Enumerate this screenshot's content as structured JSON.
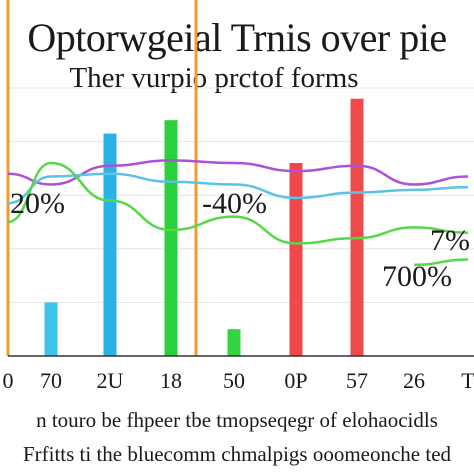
{
  "chart_data": {
    "type": "bar",
    "title": "Optorwgeial Trnis over pie",
    "subtitle": "Ther vurpio prctof forms",
    "caption_line1": "n touro be fhpeer tbe tmopseqegr of elohaocidls",
    "caption_line2": "Frfitts ti the bluecomm chmalpigs ooomeonche ted",
    "categories": [
      "0",
      "70",
      "2U",
      "18",
      "50",
      "0P",
      "57",
      "26",
      "T"
    ],
    "ylim": [
      0,
      100
    ],
    "grid": true,
    "bars": [
      {
        "category": "70",
        "value": 20,
        "color": "#3cc4ea"
      },
      {
        "category": "2U",
        "value": 83,
        "color": "#29b2e6"
      },
      {
        "category": "18",
        "value": 88,
        "color": "#2bd13a"
      },
      {
        "category": "50",
        "value": 10,
        "color": "#33d440"
      },
      {
        "category": "0P",
        "value": 72,
        "color": "#f04848"
      },
      {
        "category": "57",
        "value": 96,
        "color": "#ef4a4a"
      }
    ],
    "reference_lines": [
      {
        "x": "0",
        "color": "#f39a2e"
      },
      {
        "x": "18",
        "color": "#f39a2e"
      }
    ],
    "series": [
      {
        "color": "#b04fd8",
        "x": [
          "0",
          "70",
          "2U",
          "18",
          "50",
          "0P",
          "57",
          "26",
          "T"
        ],
        "values": [
          68,
          64,
          71,
          73,
          72,
          69,
          71,
          64,
          67
        ]
      },
      {
        "color": "#5cc3e6",
        "x": [
          "0",
          "70",
          "2U",
          "18",
          "50",
          "0P",
          "57",
          "26",
          "T"
        ],
        "values": [
          57,
          67,
          68,
          65,
          64,
          59,
          61,
          62,
          63
        ]
      },
      {
        "color": "#55d84a",
        "x": [
          "0",
          "70",
          "2U",
          "18",
          "50",
          "0P",
          "57",
          "26",
          "T"
        ],
        "values": [
          50,
          72,
          58,
          47,
          52,
          42,
          44,
          48,
          46
        ]
      },
      {
        "color": "#55d84a",
        "x": [
          "57",
          "26",
          "T"
        ],
        "values": [
          null,
          34,
          36
        ]
      }
    ],
    "data_labels": [
      "20%",
      "-40%",
      "7%",
      "700%"
    ]
  }
}
